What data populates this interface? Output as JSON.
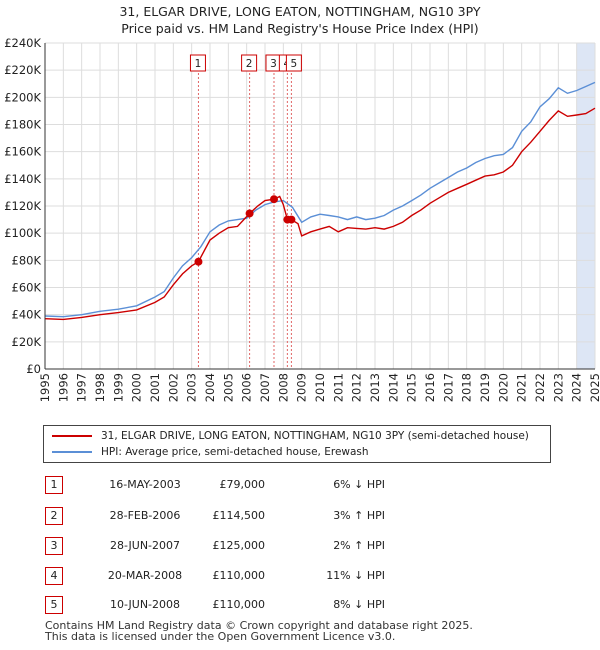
{
  "title": {
    "line1": "31, ELGAR DRIVE, LONG EATON, NOTTINGHAM, NG10 3PY",
    "line2": "Price paid vs. HM Land Registry's House Price Index (HPI)"
  },
  "colors": {
    "property": "#cc0000",
    "hpi": "#5b8fd6",
    "highlight": "#dde6f5",
    "grid": "#dddddd",
    "marker_line": "#e06666"
  },
  "legend": {
    "property_label": "31, ELGAR DRIVE, LONG EATON, NOTTINGHAM, NG10 3PY (semi-detached house)",
    "hpi_label": "HPI: Average price, semi-detached house, Erewash"
  },
  "sales": [
    {
      "num": "1",
      "date": "16-MAY-2003",
      "price": "£79,000",
      "hpi_rel": "6% ↓ HPI"
    },
    {
      "num": "2",
      "date": "28-FEB-2006",
      "price": "£114,500",
      "hpi_rel": "3% ↑ HPI"
    },
    {
      "num": "3",
      "date": "28-JUN-2007",
      "price": "£125,000",
      "hpi_rel": "2% ↑ HPI"
    },
    {
      "num": "4",
      "date": "20-MAR-2008",
      "price": "£110,000",
      "hpi_rel": "11% ↓ HPI"
    },
    {
      "num": "5",
      "date": "10-JUN-2008",
      "price": "£110,000",
      "hpi_rel": "8% ↓ HPI"
    }
  ],
  "footer": {
    "line1": "Contains HM Land Registry data © Crown copyright and database right 2025.",
    "line2": "This data is licensed under the Open Government Licence v3.0."
  },
  "chart_data": {
    "type": "line",
    "xlim": [
      1995,
      2025
    ],
    "ylim": [
      0,
      240000
    ],
    "y_ticks": [
      0,
      20000,
      40000,
      60000,
      80000,
      100000,
      120000,
      140000,
      160000,
      180000,
      200000,
      220000,
      240000
    ],
    "y_tick_labels": [
      "£0",
      "£20K",
      "£40K",
      "£60K",
      "£80K",
      "£100K",
      "£120K",
      "£140K",
      "£160K",
      "£180K",
      "£200K",
      "£220K",
      "£240K"
    ],
    "x_ticks": [
      "1995",
      "1996",
      "1997",
      "1998",
      "1999",
      "2000",
      "2001",
      "2002",
      "2003",
      "2004",
      "2005",
      "2006",
      "2007",
      "2008",
      "2009",
      "2010",
      "2011",
      "2012",
      "2013",
      "2014",
      "2015",
      "2016",
      "2017",
      "2018",
      "2019",
      "2020",
      "2021",
      "2022",
      "2023",
      "2024",
      "2025"
    ],
    "grid": true,
    "highlight_span": [
      2024.0,
      2025.0
    ],
    "series": [
      {
        "name": "31, ELGAR DRIVE, LONG EATON, NOTTINGHAM, NG10 3PY (semi-detached house)",
        "points": [
          [
            1995.0,
            37000
          ],
          [
            1996.0,
            36500
          ],
          [
            1997.0,
            38000
          ],
          [
            1998.0,
            40000
          ],
          [
            1999.0,
            41500
          ],
          [
            2000.0,
            43500
          ],
          [
            2001.0,
            49000
          ],
          [
            2001.5,
            53000
          ],
          [
            2002.0,
            62000
          ],
          [
            2002.5,
            70000
          ],
          [
            2003.0,
            76000
          ],
          [
            2003.37,
            79000
          ],
          [
            2004.0,
            95000
          ],
          [
            2004.5,
            100000
          ],
          [
            2005.0,
            104000
          ],
          [
            2005.5,
            105000
          ],
          [
            2006.16,
            114500
          ],
          [
            2006.6,
            120000
          ],
          [
            2007.0,
            124000
          ],
          [
            2007.49,
            125000
          ],
          [
            2007.8,
            127000
          ],
          [
            2008.0,
            121000
          ],
          [
            2008.22,
            110000
          ],
          [
            2008.44,
            110000
          ],
          [
            2008.8,
            107000
          ],
          [
            2009.0,
            98000
          ],
          [
            2009.5,
            101000
          ],
          [
            2010.0,
            103000
          ],
          [
            2010.5,
            105000
          ],
          [
            2011.0,
            101000
          ],
          [
            2011.5,
            104000
          ],
          [
            2012.0,
            103500
          ],
          [
            2012.5,
            103000
          ],
          [
            2013.0,
            104000
          ],
          [
            2013.5,
            103000
          ],
          [
            2014.0,
            105000
          ],
          [
            2014.5,
            108000
          ],
          [
            2015.0,
            113000
          ],
          [
            2015.5,
            117000
          ],
          [
            2016.0,
            122000
          ],
          [
            2016.5,
            126000
          ],
          [
            2017.0,
            130000
          ],
          [
            2017.5,
            133000
          ],
          [
            2018.0,
            136000
          ],
          [
            2018.5,
            139000
          ],
          [
            2019.0,
            142000
          ],
          [
            2019.5,
            143000
          ],
          [
            2020.0,
            145000
          ],
          [
            2020.5,
            150000
          ],
          [
            2021.0,
            160000
          ],
          [
            2021.5,
            167000
          ],
          [
            2022.0,
            175000
          ],
          [
            2022.5,
            183000
          ],
          [
            2023.0,
            190000
          ],
          [
            2023.5,
            186000
          ],
          [
            2024.0,
            187000
          ],
          [
            2024.5,
            188000
          ],
          [
            2025.0,
            192000
          ]
        ]
      },
      {
        "name": "HPI: Average price, semi-detached house, Erewash",
        "points": [
          [
            1995.0,
            39000
          ],
          [
            1996.0,
            38500
          ],
          [
            1997.0,
            40000
          ],
          [
            1998.0,
            42500
          ],
          [
            1999.0,
            44000
          ],
          [
            2000.0,
            46500
          ],
          [
            2001.0,
            53000
          ],
          [
            2001.5,
            57000
          ],
          [
            2002.0,
            67000
          ],
          [
            2002.5,
            76000
          ],
          [
            2003.0,
            82000
          ],
          [
            2003.5,
            90000
          ],
          [
            2004.0,
            101000
          ],
          [
            2004.5,
            106000
          ],
          [
            2005.0,
            109000
          ],
          [
            2005.5,
            110000
          ],
          [
            2006.0,
            111000
          ],
          [
            2006.5,
            117000
          ],
          [
            2007.0,
            121000
          ],
          [
            2007.5,
            123000
          ],
          [
            2008.0,
            124000
          ],
          [
            2008.5,
            119000
          ],
          [
            2009.0,
            108000
          ],
          [
            2009.5,
            112000
          ],
          [
            2010.0,
            114000
          ],
          [
            2010.5,
            113000
          ],
          [
            2011.0,
            112000
          ],
          [
            2011.5,
            110000
          ],
          [
            2012.0,
            112000
          ],
          [
            2012.5,
            110000
          ],
          [
            2013.0,
            111000
          ],
          [
            2013.5,
            113000
          ],
          [
            2014.0,
            117000
          ],
          [
            2014.5,
            120000
          ],
          [
            2015.0,
            124000
          ],
          [
            2015.5,
            128000
          ],
          [
            2016.0,
            133000
          ],
          [
            2016.5,
            137000
          ],
          [
            2017.0,
            141000
          ],
          [
            2017.5,
            145000
          ],
          [
            2018.0,
            148000
          ],
          [
            2018.5,
            152000
          ],
          [
            2019.0,
            155000
          ],
          [
            2019.5,
            157000
          ],
          [
            2020.0,
            158000
          ],
          [
            2020.5,
            163000
          ],
          [
            2021.0,
            175000
          ],
          [
            2021.5,
            182000
          ],
          [
            2022.0,
            193000
          ],
          [
            2022.5,
            199000
          ],
          [
            2023.0,
            207000
          ],
          [
            2023.5,
            203000
          ],
          [
            2024.0,
            205000
          ],
          [
            2024.5,
            208000
          ],
          [
            2025.0,
            211000
          ]
        ]
      }
    ],
    "sales": [
      {
        "num": "1",
        "x": 2003.37,
        "y": 79000
      },
      {
        "num": "2",
        "x": 2006.16,
        "y": 114500
      },
      {
        "num": "3",
        "x": 2007.49,
        "y": 125000
      },
      {
        "num": "4",
        "x": 2008.22,
        "y": 110000
      },
      {
        "num": "5",
        "x": 2008.44,
        "y": 110000
      }
    ]
  }
}
